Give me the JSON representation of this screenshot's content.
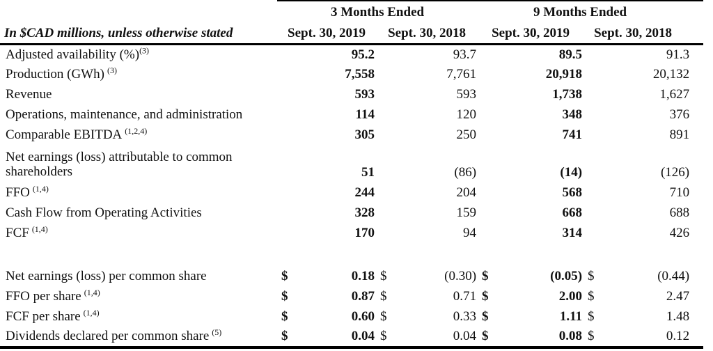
{
  "meta": {
    "ink_color": "#111111",
    "background_color": "#ffffff"
  },
  "table": {
    "unit_label": "In $CAD millions, unless otherwise stated",
    "col_groups": [
      {
        "label": "3 Months Ended"
      },
      {
        "label": "9 Months Ended"
      }
    ],
    "col_headers": [
      "Sept. 30, 2019",
      "Sept. 30, 2018",
      "Sept. 30, 2019",
      "Sept. 30, 2018"
    ],
    "rows": [
      {
        "label": "Adjusted availability (%)",
        "sup": "(3)",
        "sup_space": false,
        "values": [
          "95.2",
          "93.7",
          "89.5",
          "91.3"
        ]
      },
      {
        "label": "Production (GWh)",
        "sup": "(3)",
        "sup_space": true,
        "values": [
          "7,558",
          "7,761",
          "20,918",
          "20,132"
        ]
      },
      {
        "label": "Revenue",
        "values": [
          "593",
          "593",
          "1,738",
          "1,627"
        ]
      },
      {
        "label": "Operations, maintenance, and administration",
        "values": [
          "114",
          "120",
          "348",
          "376"
        ]
      },
      {
        "label": "Comparable EBITDA",
        "sup": "(1,2,4)",
        "sup_space": true,
        "values": [
          "305",
          "250",
          "741",
          "891"
        ]
      },
      {
        "label": "Net earnings (loss) attributable to common shareholders",
        "wrap": true,
        "values": [
          "51",
          "(86)",
          "(14)",
          "(126)"
        ]
      },
      {
        "label": "FFO",
        "sup": "(1,4)",
        "sup_space": true,
        "values": [
          "244",
          "204",
          "568",
          "710"
        ]
      },
      {
        "label": "Cash Flow from Operating Activities",
        "values": [
          "328",
          "159",
          "668",
          "688"
        ]
      },
      {
        "label": "FCF",
        "sup": "(1,4)",
        "sup_space": true,
        "values": [
          "170",
          "94",
          "314",
          "426"
        ]
      },
      {
        "spacer": true
      },
      {
        "label": "Net earnings (loss) per common share",
        "currency": "$",
        "values": [
          "0.18",
          "(0.30)",
          "(0.05)",
          "(0.44)"
        ]
      },
      {
        "label": "FFO per share",
        "sup": "(1,4)",
        "sup_space": true,
        "currency": "$",
        "values": [
          "0.87",
          "0.71",
          "2.00",
          "2.47"
        ]
      },
      {
        "label": "FCF per share",
        "sup": "(1,4)",
        "sup_space": true,
        "currency": "$",
        "values": [
          "0.60",
          "0.33",
          "1.11",
          "1.48"
        ]
      },
      {
        "label": "Dividends declared per common share",
        "sup": "(5)",
        "sup_space": true,
        "currency": "$",
        "values": [
          "0.04",
          "0.04",
          "0.08",
          "0.12"
        ]
      }
    ]
  }
}
